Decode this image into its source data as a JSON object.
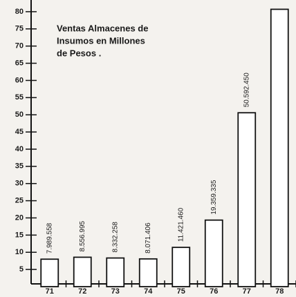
{
  "chart_data": {
    "type": "bar",
    "title": [
      "Ventas Almacenes de",
      "Insumos en Millones",
      "de Pesos ."
    ],
    "categories": [
      "71",
      "72",
      "73",
      "74",
      "75",
      "76",
      "77",
      "78"
    ],
    "values": [
      7.989558,
      8.556995,
      8.332258,
      8.071406,
      11.42146,
      19.359335,
      50.59245,
      80.7
    ],
    "value_labels": [
      "7.989.558",
      "8.556.995",
      "8.332.258",
      "8.071.406",
      "11.421.460",
      "19.359.335",
      "50.592.450",
      null
    ],
    "color": "#ffffff",
    "ylim": [
      0,
      83
    ],
    "yticks": [
      5,
      10,
      15,
      20,
      25,
      30,
      35,
      40,
      45,
      50,
      55,
      60,
      65,
      70,
      75,
      80
    ],
    "grid": false
  }
}
